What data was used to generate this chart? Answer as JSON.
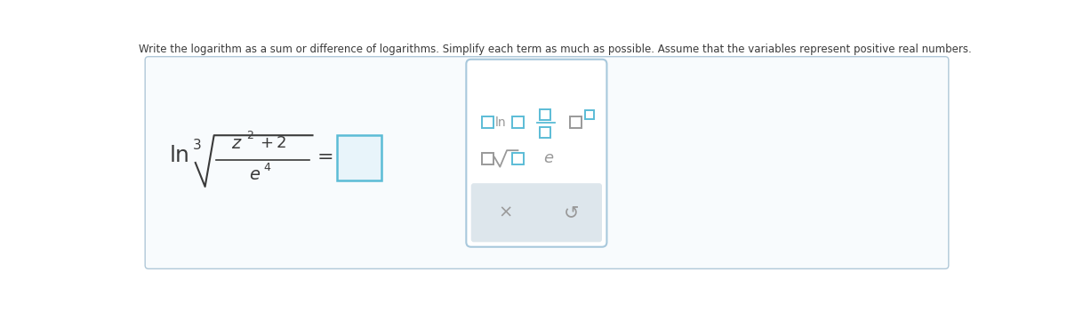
{
  "title_text": "Write the logarithm as a sum or difference of logarithms. Simplify each term as much as possible. Assume that the variables represent positive real numbers.",
  "bg_color": "#ffffff",
  "box_bg": "#f8fbfd",
  "box_border": "#b0c8d8",
  "teal_color": "#5bbcd6",
  "dark_text": "#3a3a3a",
  "gray_text": "#999999",
  "answer_box_color": "#5bbcd6",
  "answer_box_fill": "#e8f4fa",
  "button_bg": "#dde6ec",
  "panel_border": "#a8c8dc"
}
